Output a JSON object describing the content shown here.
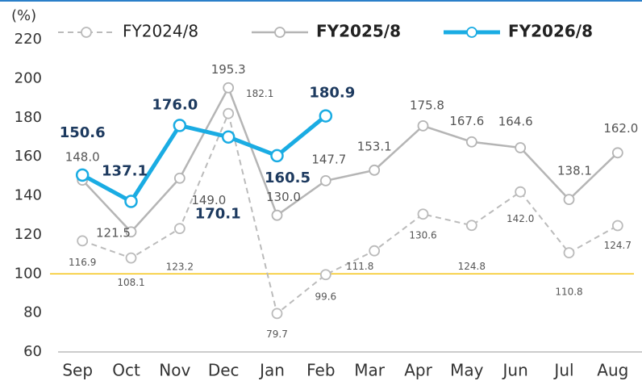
{
  "chart_data": {
    "type": "line",
    "y_axis_label": "(%)",
    "categories": [
      "Sep",
      "Oct",
      "Nov",
      "Dec",
      "Jan",
      "Feb",
      "Mar",
      "Apr",
      "May",
      "Jun",
      "Jul",
      "Aug"
    ],
    "series": [
      {
        "name": "FY2024/8",
        "color": "#bbbbbb",
        "dashed": true,
        "values": [
          116.9,
          108.1,
          123.2,
          182.1,
          79.7,
          99.6,
          111.8,
          130.6,
          124.8,
          142.0,
          110.8,
          124.7
        ],
        "value_labels": [
          "116.9",
          "108.1",
          "123.2",
          "182.1",
          "79.7",
          "99.6",
          "111.8",
          "130.6",
          "124.8",
          "142.0",
          "110.8",
          "124.7"
        ]
      },
      {
        "name": "FY2025/8",
        "color": "#b5b5b5",
        "values": [
          148.0,
          121.5,
          149.0,
          195.3,
          130.0,
          147.7,
          153.1,
          175.8,
          167.6,
          164.6,
          138.1,
          162.0
        ],
        "value_labels": [
          "148.0",
          "121.5",
          "149.0",
          "195.3",
          "130.0",
          "147.7",
          "153.1",
          "175.8",
          "167.6",
          "164.6",
          "138.1",
          "162.0"
        ]
      },
      {
        "name": "FY2026/8",
        "color": "#1aace3",
        "values": [
          150.6,
          137.1,
          176.0,
          170.1,
          160.5,
          180.9,
          null,
          null,
          null,
          null,
          null,
          null
        ],
        "value_labels": [
          "150.6",
          "137.1",
          "176.0",
          "170.1",
          "160.5",
          "180.9",
          null,
          null,
          null,
          null,
          null,
          null
        ]
      }
    ],
    "reference_line": {
      "value": 100,
      "color": "#f5c518"
    },
    "ylim": [
      60,
      220
    ],
    "yticks": [
      60,
      80,
      100,
      120,
      140,
      160,
      180,
      200,
      220
    ],
    "legend": "top"
  }
}
